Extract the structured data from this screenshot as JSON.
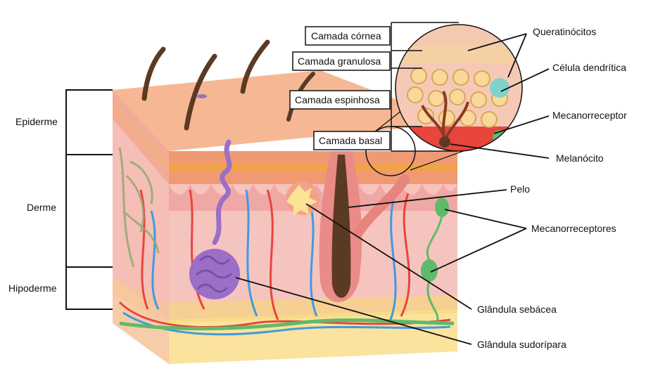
{
  "labels": {
    "layers": {
      "epiderme": "Epiderme",
      "derme": "Derme",
      "hipoderme": "Hipoderme"
    },
    "boxes": {
      "cornea": "Camada córnea",
      "granulosa": "Camada granulosa",
      "espinhosa": "Camada espinhosa",
      "basal": "Camada basal"
    },
    "callouts": {
      "queratinocitos": "Queratinócitos",
      "celula_dendritica": "Célula dendrítica",
      "mecanorreceptor": "Mecanorreceptor",
      "melanocito": "Melanócito",
      "pelo": "Pelo",
      "mecanorreceptores": "Mecanorreceptores",
      "glandula_sebacea": "Glândula sebácea",
      "glandula_sudoripara": "Glândula sudorípara"
    }
  },
  "colors": {
    "epidermis_top": "#f6b894",
    "epidermis_band": "#e9956e",
    "dermis": "#f6c7c3",
    "hypodermis": "#fbe7a2",
    "sweat_gland": "#9b6fc6",
    "sebaceous_gland": "#fbe394",
    "hair": "#5b3a24",
    "artery": "#e8453c",
    "vein": "#3f9be0",
    "nerve": "#5fba6a"
  },
  "icons": [
    "hair-icon",
    "sweat-gland-icon",
    "sebaceous-gland-icon",
    "mechanoreceptor-icon",
    "magnifier-circle-icon"
  ]
}
